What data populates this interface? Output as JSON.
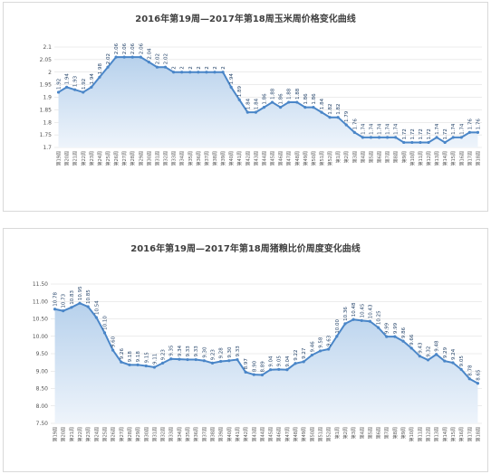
{
  "chart_data": [
    {
      "type": "area",
      "title": "2016年第19周—2017年第18周玉米周价格变化曲线",
      "ylim": [
        1.7,
        2.1
      ],
      "yticks": [
        "1.7",
        "1.75",
        "1.8",
        "1.85",
        "1.9",
        "1.95",
        "2",
        "2.05",
        "2.1"
      ],
      "grid": true,
      "colors": {
        "line": "#4a86c8",
        "fill_top": "#b7d1ec",
        "fill_bottom": "#eef4fb",
        "marker": "#4a86c8"
      },
      "categories": [
        "第19周",
        "第20周",
        "第21周",
        "第22周",
        "第23周",
        "第24周",
        "第25周",
        "第26周",
        "第27周",
        "第28周",
        "第29周",
        "第30周",
        "第31周",
        "第32周",
        "第33周",
        "第34周",
        "第35周",
        "第36周",
        "第37周",
        "第38周",
        "第39周",
        "第40周",
        "第41周",
        "第42周",
        "第43周",
        "第44周",
        "第45周",
        "第46周",
        "第47周",
        "第48周",
        "第49周",
        "第50周",
        "第51周",
        "第52周",
        "第1周",
        "第2周",
        "第3周",
        "第4周",
        "第5周",
        "第6周",
        "第7周",
        "第8周",
        "第9周",
        "第10周",
        "第11周",
        "第12周",
        "第13周",
        "第14周",
        "第15周",
        "第16周",
        "第17周",
        "第18周"
      ],
      "values": [
        1.92,
        1.94,
        1.93,
        1.92,
        1.94,
        1.98,
        2.02,
        2.06,
        2.06,
        2.06,
        2.06,
        2.04,
        2.02,
        2.02,
        2,
        2,
        2,
        2,
        2,
        2,
        2,
        1.94,
        1.89,
        1.84,
        1.84,
        1.86,
        1.88,
        1.86,
        1.88,
        1.88,
        1.86,
        1.86,
        1.84,
        1.82,
        1.82,
        1.79,
        1.76,
        1.74,
        1.74,
        1.74,
        1.74,
        1.74,
        1.72,
        1.72,
        1.72,
        1.72,
        1.74,
        1.72,
        1.74,
        1.74,
        1.76,
        1.76
      ],
      "labels": [
        "1.92",
        "1.94",
        "1.93",
        "1.92",
        "1.94",
        "1.98",
        "2.02",
        "2.06",
        "2.06",
        "2.06",
        "2.06",
        "2.04",
        "2.02",
        "2.02",
        "2",
        "2",
        "2",
        "2",
        "2",
        "2",
        "2",
        "1.94",
        "1.89",
        "1.84",
        "1.84",
        "1.86",
        "1.88",
        "1.86",
        "1.88",
        "1.88",
        "1.86",
        "1.86",
        "1.84",
        "1.82",
        "1.82",
        "1.79",
        "1.76",
        "1.74",
        "1.74",
        "1.74",
        "1.74",
        "1.74",
        "1.72",
        "1.72",
        "1.72",
        "1.72",
        "1.74",
        "1.72",
        "1.74",
        "1.74",
        "1.76",
        "1.76"
      ]
    },
    {
      "type": "area",
      "title": "2016年第19周—2017年第18周猪粮比价周度变化曲线",
      "ylim": [
        7.5,
        11.5
      ],
      "yticks": [
        "7.50",
        "8.00",
        "8.50",
        "9.00",
        "9.50",
        "10.00",
        "10.50",
        "11.00",
        "11.50"
      ],
      "grid": true,
      "colors": {
        "line": "#4a86c8",
        "fill_top": "#b7d1ec",
        "fill_bottom": "#eef4fb",
        "marker": "#4a86c8"
      },
      "categories": [
        "第19周",
        "第20周",
        "第21周",
        "第22周",
        "第23周",
        "第24周",
        "第25周",
        "第26周",
        "第27周",
        "第28周",
        "第29周",
        "第30周",
        "第31周",
        "第32周",
        "第33周",
        "第34周",
        "第35周",
        "第36周",
        "第37周",
        "第38周",
        "第39周",
        "第40周",
        "第41周",
        "第42周",
        "第43周",
        "第44周",
        "第45周",
        "第46周",
        "第47周",
        "第48周",
        "第49周",
        "第50周",
        "第51周",
        "第52周",
        "第1周",
        "第2周",
        "第3周",
        "第4周",
        "第5周",
        "第6周",
        "第7周",
        "第8周",
        "第9周",
        "第10周",
        "第11周",
        "第12周",
        "第13周",
        "第14周",
        "第15周",
        "第16周",
        "第17周",
        "第18周"
      ],
      "values": [
        10.78,
        10.73,
        10.83,
        10.95,
        10.85,
        10.54,
        10.1,
        9.6,
        9.26,
        9.18,
        9.18,
        9.15,
        9.11,
        9.23,
        9.35,
        9.34,
        9.33,
        9.33,
        9.3,
        9.23,
        9.28,
        9.3,
        9.33,
        8.97,
        8.9,
        8.89,
        9.04,
        9.05,
        9.04,
        9.22,
        9.27,
        9.46,
        9.58,
        9.63,
        10.0,
        10.36,
        10.48,
        10.45,
        10.43,
        10.25,
        9.99,
        9.99,
        9.86,
        9.66,
        9.43,
        9.32,
        9.48,
        9.29,
        9.24,
        9.05,
        8.78,
        8.65
      ],
      "labels": [
        "10.78",
        "10.73",
        "10.83",
        "10.95",
        "10.85",
        "10.54",
        "10.10",
        "9.60",
        "9.26",
        "9.18",
        "9.18",
        "9.15",
        "9.11",
        "9.23",
        "9.35",
        "9.34",
        "9.33",
        "9.33",
        "9.30",
        "9.23",
        "9.28",
        "9.30",
        "9.33",
        "8.97",
        "8.90",
        "8.89",
        "9.04",
        "9.05",
        "9.04",
        "9.22",
        "9.27",
        "9.46",
        "9.58",
        "9.63",
        "10.00",
        "10.36",
        "10.48",
        "10.45",
        "10.43",
        "10.25",
        "9.99",
        "9.99",
        "9.86",
        "9.66",
        "9.43",
        "9.32",
        "9.48",
        "9.29",
        "9.24",
        "9.05",
        "8.78",
        "8.65"
      ]
    }
  ]
}
